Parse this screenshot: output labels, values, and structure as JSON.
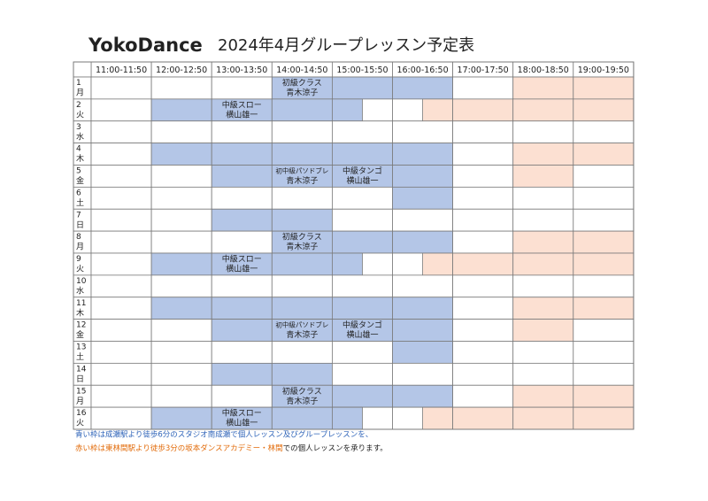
{
  "header": {
    "brand": "YokoDance",
    "title": "2024年4月グループレッスン予定表"
  },
  "table": {
    "columns": [
      "11:00-11:50",
      "12:00-12:50",
      "13:00-13:50",
      "14:00-14:50",
      "15:00-15:50",
      "16:00-16:50",
      "17:00-17:50",
      "18:00-18:50",
      "19:00-19:50"
    ],
    "rows": [
      {
        "day": "1",
        "weekday": "月",
        "cells": [
          null,
          null,
          null,
          {
            "class": "初級クラス",
            "teacher": "青木涼子"
          },
          null,
          null,
          null,
          null,
          null
        ]
      },
      {
        "day": "2",
        "weekday": "火",
        "cells": [
          null,
          null,
          {
            "class": "中級スロー",
            "teacher": "横山雄一"
          },
          null,
          null,
          null,
          null,
          null,
          null
        ]
      },
      {
        "day": "3",
        "weekday": "水",
        "cells": [
          null,
          null,
          null,
          null,
          null,
          null,
          null,
          null,
          null
        ]
      },
      {
        "day": "4",
        "weekday": "木",
        "cells": [
          null,
          null,
          null,
          null,
          null,
          null,
          null,
          null,
          null
        ]
      },
      {
        "day": "5",
        "weekday": "金",
        "cells": [
          null,
          null,
          null,
          {
            "class": "初中級パソドブレ",
            "teacher": "青木涼子"
          },
          {
            "class": "中級タンゴ",
            "teacher": "横山雄一"
          },
          null,
          null,
          null,
          null
        ]
      },
      {
        "day": "6",
        "weekday": "土",
        "cells": [
          null,
          null,
          null,
          null,
          null,
          null,
          null,
          null,
          null
        ]
      },
      {
        "day": "7",
        "weekday": "日",
        "cells": [
          null,
          null,
          null,
          null,
          null,
          null,
          null,
          null,
          null
        ]
      },
      {
        "day": "8",
        "weekday": "月",
        "cells": [
          null,
          null,
          null,
          {
            "class": "初級クラス",
            "teacher": "青木涼子"
          },
          null,
          null,
          null,
          null,
          null
        ]
      },
      {
        "day": "9",
        "weekday": "火",
        "cells": [
          null,
          null,
          {
            "class": "中級スロー",
            "teacher": "横山雄一"
          },
          null,
          null,
          null,
          null,
          null,
          null
        ]
      },
      {
        "day": "10",
        "weekday": "水",
        "cells": [
          null,
          null,
          null,
          null,
          null,
          null,
          null,
          null,
          null
        ]
      },
      {
        "day": "11",
        "weekday": "木",
        "cells": [
          null,
          null,
          null,
          null,
          null,
          null,
          null,
          null,
          null
        ]
      },
      {
        "day": "12",
        "weekday": "金",
        "cells": [
          null,
          null,
          null,
          {
            "class": "初中級パソドブレ",
            "teacher": "青木涼子"
          },
          {
            "class": "中級タンゴ",
            "teacher": "横山雄一"
          },
          null,
          null,
          null,
          null
        ]
      },
      {
        "day": "13",
        "weekday": "土",
        "cells": [
          null,
          null,
          null,
          null,
          null,
          null,
          null,
          null,
          null
        ]
      },
      {
        "day": "14",
        "weekday": "日",
        "cells": [
          null,
          null,
          null,
          null,
          null,
          null,
          null,
          null,
          null
        ]
      },
      {
        "day": "15",
        "weekday": "月",
        "cells": [
          null,
          null,
          null,
          {
            "class": "初級クラス",
            "teacher": "青木涼子"
          },
          null,
          null,
          null,
          null,
          null
        ]
      },
      {
        "day": "16",
        "weekday": "火",
        "cells": [
          null,
          null,
          {
            "class": "中級スロー",
            "teacher": "横山雄一"
          },
          null,
          null,
          null,
          null,
          null,
          null
        ]
      }
    ]
  },
  "footer": {
    "line1": "青い枠は成瀬駅より徒歩6分のスタジオ南成瀬で個人レッスン及びグループレッスンを、",
    "line2_colored": "赤い枠は東林間駅より徒歩3分の坂本ダンスアカデミー・林間",
    "line2_rest": "での個人レッスンを承ります。"
  }
}
